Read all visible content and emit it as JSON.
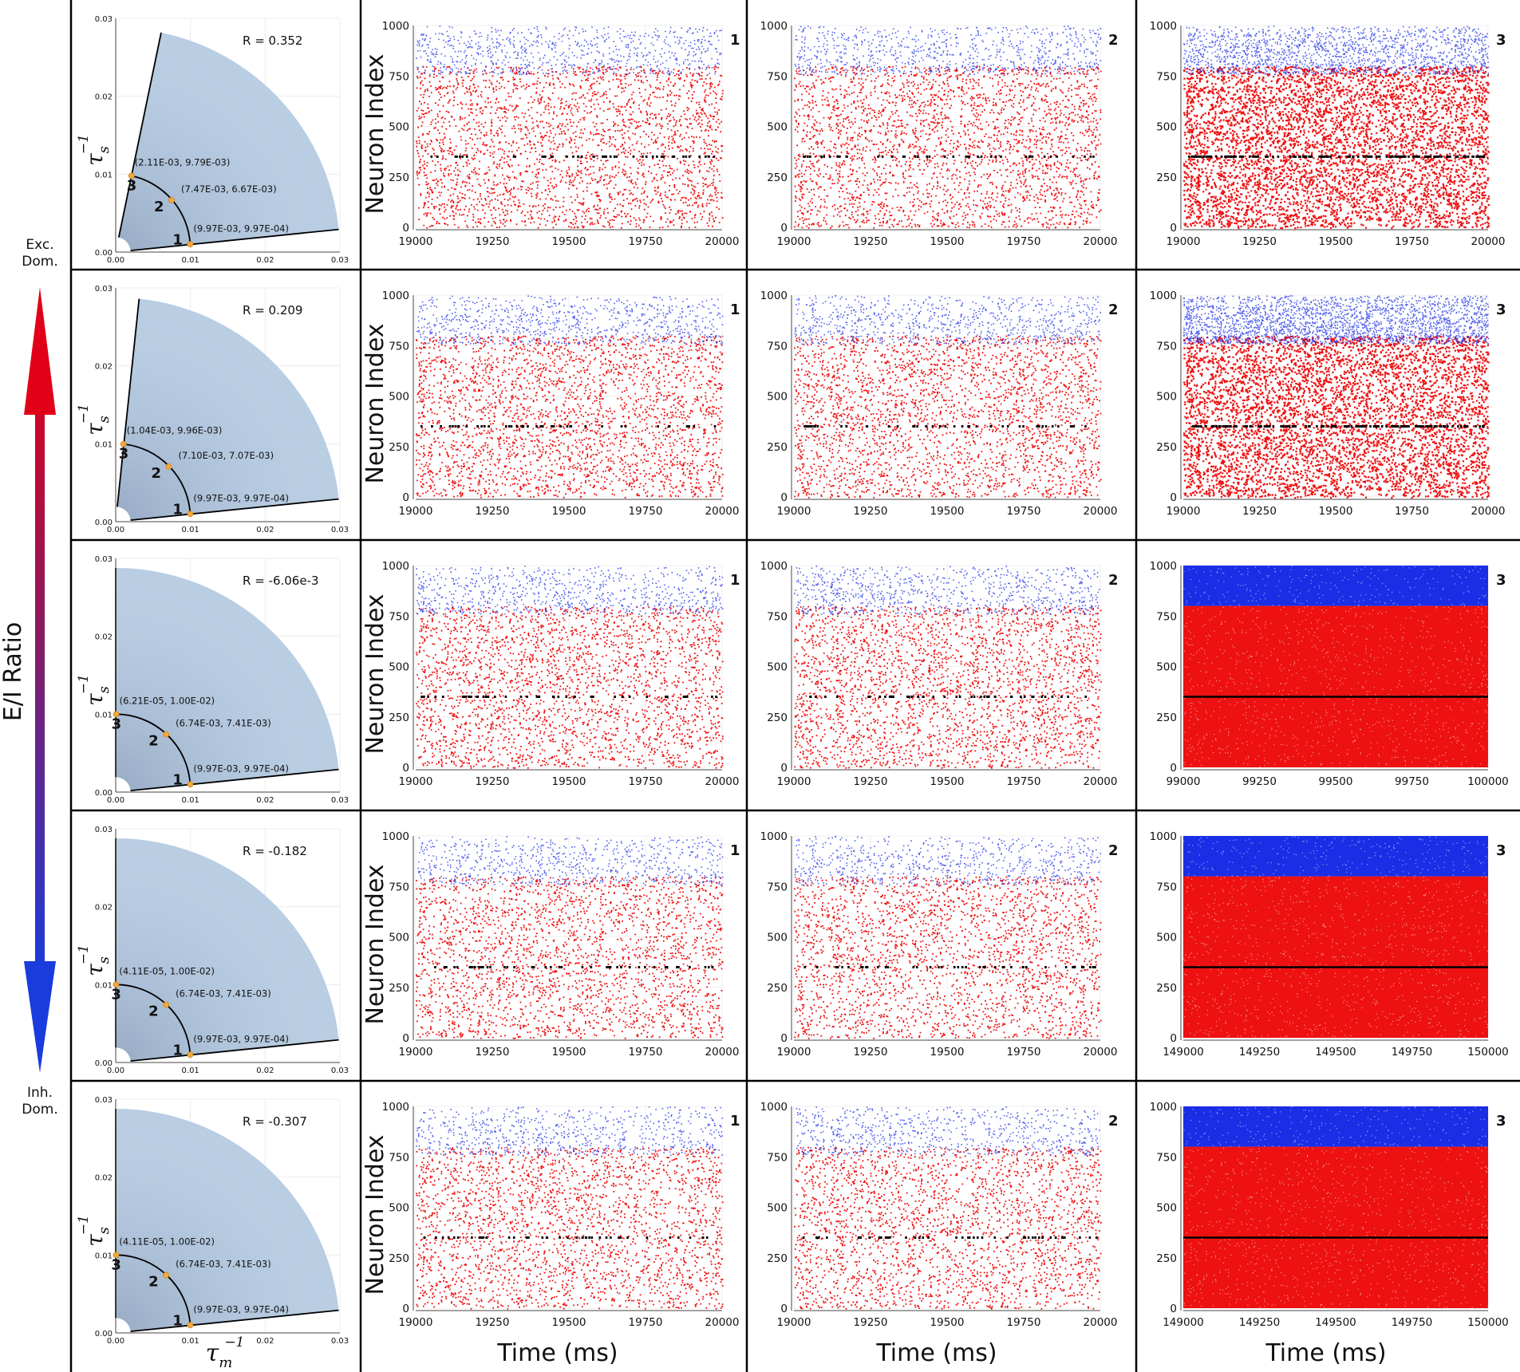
{
  "figure": {
    "side_label": "E/I Ratio",
    "top_label_line1": "Exc.",
    "top_label_line2": "Dom.",
    "bottom_label_line1": "Inh.",
    "bottom_label_line2": "Dom.",
    "raster_ylabel": "Neuron Index",
    "raster_xlabel": "Time (ms)",
    "sector_ylabel_base": "τ",
    "sector_ylabel_sub": "s",
    "sector_xlabel_base": "τ",
    "sector_xlabel_sub": "m",
    "sup": "−1",
    "colors": {
      "excitatory": "#ee1111",
      "inhibitory": "#1a2ee6",
      "tracked": "#000000",
      "sector": "#b9cde3",
      "marker": "#f2a93b",
      "arrow_top": "#e00018",
      "arrow_bottom": "#1a3cdd"
    }
  },
  "chart_data": [
    {
      "type": "sector",
      "row": 1,
      "R_label": "R = 0.352",
      "sector_angles_deg": [
        5.8,
        78.3
      ],
      "inner_radius": 0.002,
      "outer_radius": 0.03,
      "xlim": [
        0,
        0.03
      ],
      "ylim": [
        0,
        0.03
      ],
      "xticks": [
        "0.00",
        "0.01",
        "0.02",
        "0.03"
      ],
      "yticks": [
        "0.00",
        "0.01",
        "0.02",
        "0.03"
      ],
      "points": [
        {
          "id": "1",
          "x": 0.00997,
          "y": 0.000997,
          "label": "(9.97E-03, 9.97E-04)"
        },
        {
          "id": "2",
          "x": 0.00747,
          "y": 0.00667,
          "label": "(7.47E-03, 6.67E-03)"
        },
        {
          "id": "3",
          "x": 0.00211,
          "y": 0.00979,
          "label": "(2.11E-03, 9.79E-03)"
        }
      ]
    },
    {
      "type": "sector",
      "row": 2,
      "R_label": "R = 0.209",
      "sector_angles_deg": [
        5.8,
        84.0
      ],
      "inner_radius": 0.002,
      "outer_radius": 0.03,
      "xlim": [
        0,
        0.03
      ],
      "ylim": [
        0,
        0.03
      ],
      "xticks": [
        "0.00",
        "0.01",
        "0.02",
        "0.03"
      ],
      "yticks": [
        "0.00",
        "0.01",
        "0.02",
        "0.03"
      ],
      "points": [
        {
          "id": "1",
          "x": 0.00997,
          "y": 0.000997,
          "label": "(9.97E-03, 9.97E-04)"
        },
        {
          "id": "2",
          "x": 0.0071,
          "y": 0.00707,
          "label": "(7.10E-03, 7.07E-03)"
        },
        {
          "id": "3",
          "x": 0.00104,
          "y": 0.00996,
          "label": "(1.04E-03, 9.96E-03)"
        }
      ]
    },
    {
      "type": "sector",
      "row": 3,
      "R_label": "R = -6.06e-3",
      "sector_angles_deg": [
        5.8,
        90.0
      ],
      "inner_radius": 0.002,
      "outer_radius": 0.03,
      "xlim": [
        0,
        0.03
      ],
      "ylim": [
        0,
        0.03
      ],
      "xticks": [
        "0.00",
        "0.01",
        "0.02",
        "0.03"
      ],
      "yticks": [
        "0.00",
        "0.01",
        "0.02",
        "0.03"
      ],
      "points": [
        {
          "id": "1",
          "x": 0.00997,
          "y": 0.000997,
          "label": "(9.97E-03, 9.97E-04)"
        },
        {
          "id": "2",
          "x": 0.00674,
          "y": 0.00741,
          "label": "(6.74E-03, 7.41E-03)"
        },
        {
          "id": "3",
          "x": 6.21e-05,
          "y": 0.01,
          "label": "(6.21E-05, 1.00E-02)"
        }
      ]
    },
    {
      "type": "sector",
      "row": 4,
      "R_label": "R = -0.182",
      "sector_angles_deg": [
        5.8,
        90.0
      ],
      "inner_radius": 0.002,
      "outer_radius": 0.03,
      "xlim": [
        0,
        0.03
      ],
      "ylim": [
        0,
        0.03
      ],
      "xticks": [
        "0.00",
        "0.01",
        "0.02",
        "0.03"
      ],
      "yticks": [
        "0.00",
        "0.01",
        "0.02",
        "0.03"
      ],
      "points": [
        {
          "id": "1",
          "x": 0.00997,
          "y": 0.000997,
          "label": "(9.97E-03, 9.97E-04)"
        },
        {
          "id": "2",
          "x": 0.00674,
          "y": 0.00741,
          "label": "(6.74E-03, 7.41E-03)"
        },
        {
          "id": "3",
          "x": 4.11e-05,
          "y": 0.01,
          "label": "(4.11E-05, 1.00E-02)"
        }
      ]
    },
    {
      "type": "sector",
      "row": 5,
      "R_label": "R = -0.307",
      "sector_angles_deg": [
        5.8,
        90.0
      ],
      "inner_radius": 0.002,
      "outer_radius": 0.03,
      "xlim": [
        0,
        0.03
      ],
      "ylim": [
        0,
        0.03
      ],
      "xticks": [
        "0.00",
        "0.01",
        "0.02",
        "0.03"
      ],
      "yticks": [
        "0.00",
        "0.01",
        "0.02",
        "0.03"
      ],
      "points": [
        {
          "id": "1",
          "x": 0.00997,
          "y": 0.000997,
          "label": "(9.97E-03, 9.97E-04)"
        },
        {
          "id": "2",
          "x": 0.00674,
          "y": 0.00741,
          "label": "(6.74E-03, 7.41E-03)"
        },
        {
          "id": "3",
          "x": 4.11e-05,
          "y": 0.01,
          "label": "(4.11E-05, 1.00E-02)"
        }
      ]
    },
    {
      "type": "scatter",
      "row": 1,
      "col": 1,
      "panel_label": "1",
      "xlim": [
        19000,
        20000
      ],
      "xticks": [
        "19000",
        "19250",
        "19500",
        "19750",
        "20000"
      ],
      "ylim": [
        0,
        1000
      ],
      "yticks": [
        "0",
        "250",
        "500",
        "750",
        "1000"
      ],
      "excitatory_range": [
        0,
        800
      ],
      "inhibitory_range": [
        800,
        1000
      ],
      "tracked_neuron": 350,
      "density": 0.16
    },
    {
      "type": "scatter",
      "row": 1,
      "col": 2,
      "panel_label": "2",
      "xlim": [
        19000,
        20000
      ],
      "xticks": [
        "19000",
        "19250",
        "19500",
        "19750",
        "20000"
      ],
      "ylim": [
        0,
        1000
      ],
      "yticks": [
        "0",
        "250",
        "500",
        "750",
        "1000"
      ],
      "excitatory_range": [
        0,
        800
      ],
      "inhibitory_range": [
        800,
        1000
      ],
      "tracked_neuron": 350,
      "density": 0.17
    },
    {
      "type": "scatter",
      "row": 1,
      "col": 3,
      "panel_label": "3",
      "xlim": [
        19000,
        20000
      ],
      "xticks": [
        "19000",
        "19250",
        "19500",
        "19750",
        "20000"
      ],
      "ylim": [
        0,
        1000
      ],
      "yticks": [
        "0",
        "250",
        "500",
        "750",
        "1000"
      ],
      "excitatory_range": [
        0,
        800
      ],
      "inhibitory_range": [
        800,
        1000
      ],
      "tracked_neuron": 350,
      "density": 0.34
    },
    {
      "type": "scatter",
      "row": 2,
      "col": 1,
      "panel_label": "1",
      "xlim": [
        19000,
        20000
      ],
      "xticks": [
        "19000",
        "19250",
        "19500",
        "19750",
        "20000"
      ],
      "ylim": [
        0,
        1000
      ],
      "yticks": [
        "0",
        "250",
        "500",
        "750",
        "1000"
      ],
      "excitatory_range": [
        0,
        800
      ],
      "inhibitory_range": [
        800,
        1000
      ],
      "tracked_neuron": 350,
      "density": 0.17
    },
    {
      "type": "scatter",
      "row": 2,
      "col": 2,
      "panel_label": "2",
      "xlim": [
        19000,
        20000
      ],
      "xticks": [
        "19000",
        "19250",
        "19500",
        "19750",
        "20000"
      ],
      "ylim": [
        0,
        1000
      ],
      "yticks": [
        "0",
        "250",
        "500",
        "750",
        "1000"
      ],
      "excitatory_range": [
        0,
        800
      ],
      "inhibitory_range": [
        800,
        1000
      ],
      "tracked_neuron": 350,
      "density": 0.17
    },
    {
      "type": "scatter",
      "row": 2,
      "col": 3,
      "panel_label": "3",
      "xlim": [
        19000,
        20000
      ],
      "xticks": [
        "19000",
        "19250",
        "19500",
        "19750",
        "20000"
      ],
      "ylim": [
        0,
        1000
      ],
      "yticks": [
        "0",
        "250",
        "500",
        "750",
        "1000"
      ],
      "excitatory_range": [
        0,
        800
      ],
      "inhibitory_range": [
        800,
        1000
      ],
      "tracked_neuron": 350,
      "density": 0.5
    },
    {
      "type": "scatter",
      "row": 3,
      "col": 1,
      "panel_label": "1",
      "xlim": [
        19000,
        20000
      ],
      "xticks": [
        "19000",
        "19250",
        "19500",
        "19750",
        "20000"
      ],
      "ylim": [
        0,
        1000
      ],
      "yticks": [
        "0",
        "250",
        "500",
        "750",
        "1000"
      ],
      "excitatory_range": [
        0,
        800
      ],
      "inhibitory_range": [
        800,
        1000
      ],
      "tracked_neuron": 350,
      "density": 0.16
    },
    {
      "type": "scatter",
      "row": 3,
      "col": 2,
      "panel_label": "2",
      "xlim": [
        19000,
        20000
      ],
      "xticks": [
        "19000",
        "19250",
        "19500",
        "19750",
        "20000"
      ],
      "ylim": [
        0,
        1000
      ],
      "yticks": [
        "0",
        "250",
        "500",
        "750",
        "1000"
      ],
      "excitatory_range": [
        0,
        800
      ],
      "inhibitory_range": [
        800,
        1000
      ],
      "tracked_neuron": 350,
      "density": 0.17
    },
    {
      "type": "scatter",
      "row": 3,
      "col": 3,
      "panel_label": "3",
      "xlim": [
        99000,
        100000
      ],
      "xticks": [
        "99000",
        "99250",
        "99500",
        "99750",
        "100000"
      ],
      "ylim": [
        0,
        1000
      ],
      "yticks": [
        "0",
        "250",
        "500",
        "750",
        "1000"
      ],
      "excitatory_range": [
        0,
        800
      ],
      "inhibitory_range": [
        800,
        1000
      ],
      "tracked_neuron": 350,
      "density": 1.0
    },
    {
      "type": "scatter",
      "row": 4,
      "col": 1,
      "panel_label": "1",
      "xlim": [
        19000,
        20000
      ],
      "xticks": [
        "19000",
        "19250",
        "19500",
        "19750",
        "20000"
      ],
      "ylim": [
        0,
        1000
      ],
      "yticks": [
        "0",
        "250",
        "500",
        "750",
        "1000"
      ],
      "excitatory_range": [
        0,
        800
      ],
      "inhibitory_range": [
        800,
        1000
      ],
      "tracked_neuron": 350,
      "density": 0.15
    },
    {
      "type": "scatter",
      "row": 4,
      "col": 2,
      "panel_label": "2",
      "xlim": [
        19000,
        20000
      ],
      "xticks": [
        "19000",
        "19250",
        "19500",
        "19750",
        "20000"
      ],
      "ylim": [
        0,
        1000
      ],
      "yticks": [
        "0",
        "250",
        "500",
        "750",
        "1000"
      ],
      "excitatory_range": [
        0,
        800
      ],
      "inhibitory_range": [
        800,
        1000
      ],
      "tracked_neuron": 350,
      "density": 0.15
    },
    {
      "type": "scatter",
      "row": 4,
      "col": 3,
      "panel_label": "3",
      "xlim": [
        149000,
        150000
      ],
      "xticks": [
        "149000",
        "149250",
        "149500",
        "149750",
        "150000"
      ],
      "ylim": [
        0,
        1000
      ],
      "yticks": [
        "0",
        "250",
        "500",
        "750",
        "1000"
      ],
      "excitatory_range": [
        0,
        800
      ],
      "inhibitory_range": [
        800,
        1000
      ],
      "tracked_neuron": 350,
      "density": 1.0
    },
    {
      "type": "scatter",
      "row": 5,
      "col": 1,
      "panel_label": "1",
      "xlim": [
        19000,
        20000
      ],
      "xticks": [
        "19000",
        "19250",
        "19500",
        "19750",
        "20000"
      ],
      "ylim": [
        0,
        1000
      ],
      "yticks": [
        "0",
        "250",
        "500",
        "750",
        "1000"
      ],
      "excitatory_range": [
        0,
        800
      ],
      "inhibitory_range": [
        800,
        1000
      ],
      "tracked_neuron": 350,
      "density": 0.15
    },
    {
      "type": "scatter",
      "row": 5,
      "col": 2,
      "panel_label": "2",
      "xlim": [
        19000,
        20000
      ],
      "xticks": [
        "19000",
        "19250",
        "19500",
        "19750",
        "20000"
      ],
      "ylim": [
        0,
        1000
      ],
      "yticks": [
        "0",
        "250",
        "500",
        "750",
        "1000"
      ],
      "excitatory_range": [
        0,
        800
      ],
      "inhibitory_range": [
        800,
        1000
      ],
      "tracked_neuron": 350,
      "density": 0.15
    },
    {
      "type": "scatter",
      "row": 5,
      "col": 3,
      "panel_label": "3",
      "xlim": [
        149000,
        150000
      ],
      "xticks": [
        "149000",
        "149250",
        "149500",
        "149750",
        "150000"
      ],
      "ylim": [
        0,
        1000
      ],
      "yticks": [
        "0",
        "250",
        "500",
        "750",
        "1000"
      ],
      "excitatory_range": [
        0,
        800
      ],
      "inhibitory_range": [
        800,
        1000
      ],
      "tracked_neuron": 350,
      "density": 1.0
    }
  ]
}
